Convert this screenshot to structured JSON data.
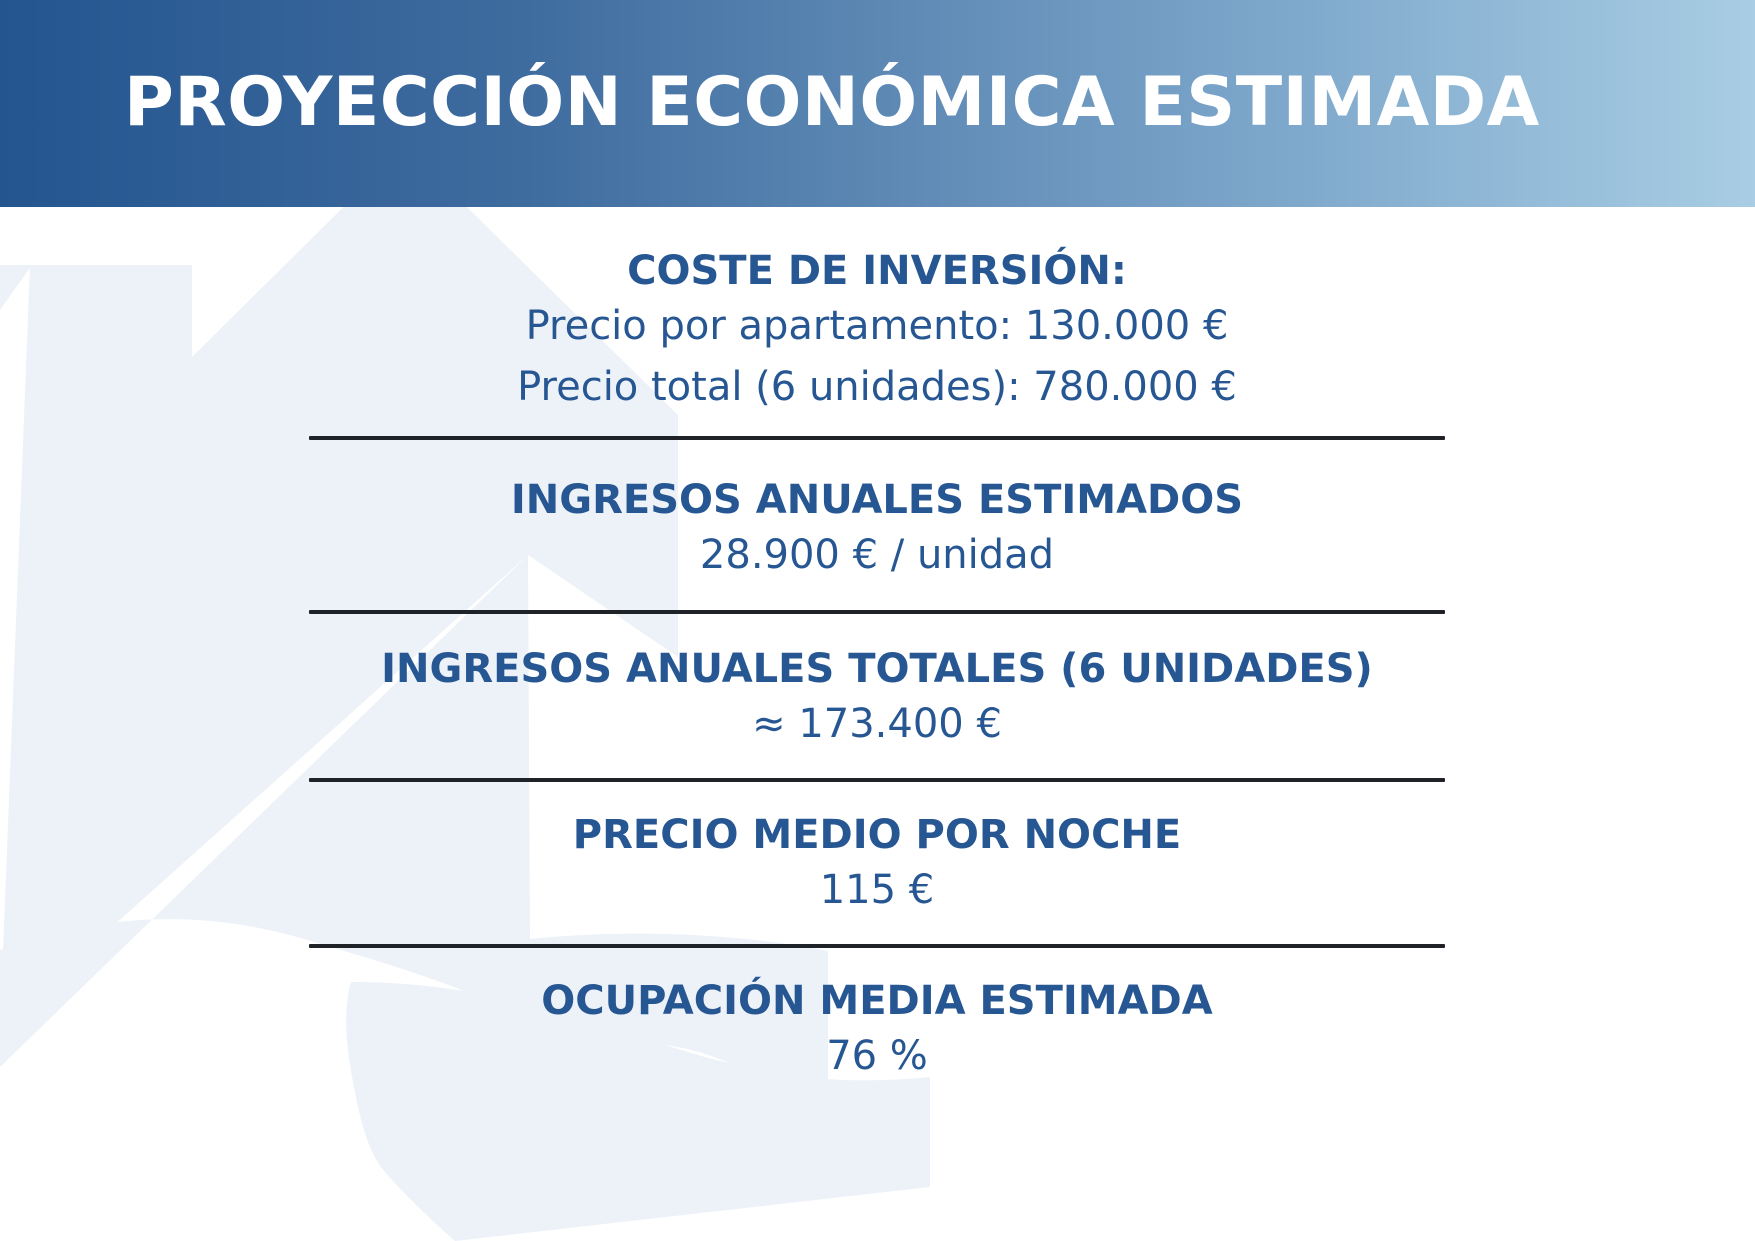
{
  "header": {
    "title": "PROYECCIÓN ECONÓMICA ESTIMADA"
  },
  "sections": [
    {
      "heading": "COSTE DE INVERSIÓN:",
      "lines": [
        "Precio por apartamento: 130.000 €",
        "Precio total (6 unidades): 780.000 €"
      ]
    },
    {
      "heading": "INGRESOS ANUALES ESTIMADOS",
      "lines": [
        "28.900 € / unidad"
      ]
    },
    {
      "heading": "INGRESOS ANUALES TOTALES (6 UNIDADES)",
      "lines": [
        "≈ 173.400 €"
      ]
    },
    {
      "heading": "PRECIO MEDIO POR NOCHE",
      "lines": [
        "115 €"
      ]
    },
    {
      "heading": "OCUPACIÓN MEDIA ESTIMADA",
      "lines": [
        "76 %"
      ]
    }
  ],
  "colors": {
    "header_gradient_start": "#24558f",
    "header_gradient_end": "#a8cde4",
    "text_primary": "#275793",
    "divider": "#1f2328",
    "watermark": "#edf2f8"
  },
  "icons": {
    "background": "house-in-hand-icon"
  }
}
